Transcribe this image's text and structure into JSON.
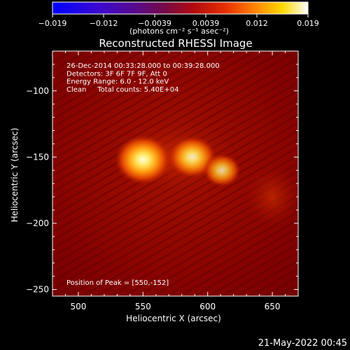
{
  "chart_data": {
    "type": "heatmap",
    "title": "Reconstructed RHESSI Image",
    "xlabel": "Heliocentric X (arcsec)",
    "ylabel": "Heliocentric Y (arcsec)",
    "xlim": [
      480,
      670
    ],
    "ylim": [
      -255,
      -70
    ],
    "x_ticks": [
      500,
      550,
      600,
      650
    ],
    "y_ticks": [
      -100,
      -150,
      -200,
      -250
    ],
    "colorbar": {
      "range": [
        -0.019,
        0.019
      ],
      "ticks": [
        "−0.019",
        "−0.012",
        "−0.0039",
        "0.0039",
        "0.012",
        "0.019"
      ],
      "unit_label": "(photons cm⁻² s⁻¹ asec⁻²)",
      "colormap": "RHESSI red-temperature (blue → purple → red → orange → yellow → white)"
    },
    "annotations": [
      "26-Dec-2014 00:33:28.000 to 00:39:28.000",
      "Detectors: 3F 6F 7F 9F, Att 0",
      "Energy Range: 6.0 - 12.0 keV",
      "Clean     Total counts: 5.40E+04",
      "Position of Peak = [550,-152]"
    ],
    "sources": [
      {
        "x": 550,
        "y": -152,
        "relative_intensity": 1.0
      },
      {
        "x": 588,
        "y": -150,
        "relative_intensity": 0.8
      },
      {
        "x": 611,
        "y": -160,
        "relative_intensity": 0.55
      }
    ],
    "grid": false
  },
  "footer_date": "21-May-2022 00:45",
  "colors": {
    "background": "#000000",
    "image_base": "#8a0000",
    "peak": "#fff8b0"
  }
}
